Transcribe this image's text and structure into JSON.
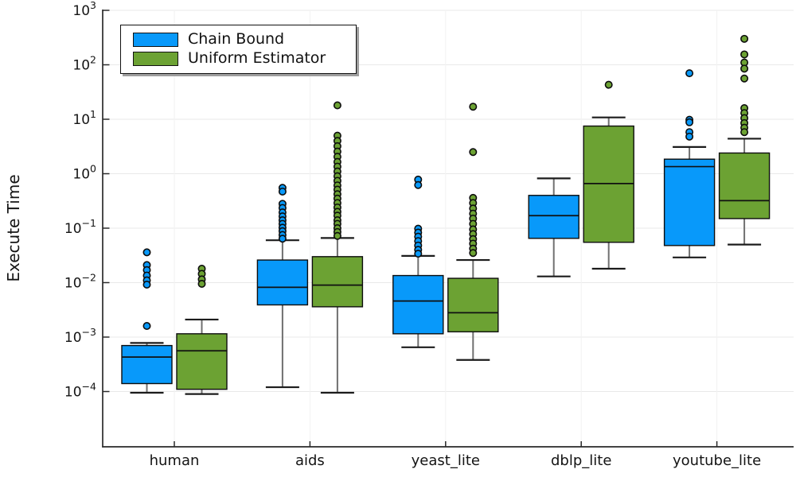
{
  "chart_data": {
    "type": "boxplot",
    "title": "",
    "ylabel": "Execute Time",
    "xlabel": "",
    "yscale": "log",
    "ylim": [
      1e-05,
      1000
    ],
    "ytick_exponents": [
      3,
      2,
      1,
      0,
      -1,
      -2,
      -3,
      -4
    ],
    "categories": [
      "human",
      "aids",
      "yeast_lite",
      "dblp_lite",
      "youtube_lite"
    ],
    "grid": true,
    "legend_position": "top-left",
    "colors": {
      "chain_bound": "#0899FA",
      "uniform_estimator": "#6CA233"
    },
    "series": [
      {
        "name": "Chain Bound",
        "color": "#0899FA",
        "boxes": [
          {
            "category": "human",
            "whislo": 9.5e-05,
            "q1": 0.00014,
            "med": 0.00043,
            "q3": 0.0007,
            "whishi": 0.00078,
            "outliers": [
              0.036,
              0.021,
              0.017,
              0.0135,
              0.011,
              0.0092,
              0.0016
            ]
          },
          {
            "category": "aids",
            "whislo": 0.00012,
            "q1": 0.0039,
            "med": 0.0082,
            "q3": 0.026,
            "whishi": 0.06,
            "outliers": [
              0.55,
              0.47,
              0.28,
              0.235,
              0.195,
              0.165,
              0.14,
              0.12,
              0.102,
              0.088,
              0.075,
              0.064
            ]
          },
          {
            "category": "yeast_lite",
            "whislo": 0.00065,
            "q1": 0.00115,
            "med": 0.0046,
            "q3": 0.0135,
            "whishi": 0.031,
            "outliers": [
              0.78,
              0.62,
              0.098,
              0.083,
              0.07,
              0.058,
              0.048,
              0.04,
              0.034
            ]
          },
          {
            "category": "dblp_lite",
            "whislo": 0.013,
            "q1": 0.065,
            "med": 0.17,
            "q3": 0.4,
            "whishi": 0.82,
            "outliers": []
          },
          {
            "category": "youtube_lite",
            "whislo": 0.029,
            "q1": 0.048,
            "med": 1.35,
            "q3": 1.85,
            "whishi": 3.1,
            "outliers": [
              70,
              9.8,
              8.8,
              5.8,
              4.8
            ]
          }
        ]
      },
      {
        "name": "Uniform Estimator",
        "color": "#6CA233",
        "boxes": [
          {
            "category": "human",
            "whislo": 9e-05,
            "q1": 0.00011,
            "med": 0.00056,
            "q3": 0.00115,
            "whishi": 0.0021,
            "outliers": [
              0.018,
              0.0145,
              0.0115,
              0.0095
            ]
          },
          {
            "category": "aids",
            "whislo": 9.5e-05,
            "q1": 0.0036,
            "med": 0.009,
            "q3": 0.03,
            "whishi": 0.066,
            "outliers": [
              18,
              5.0,
              4.0,
              3.2,
              2.55,
              2.05,
              1.65,
              1.35,
              1.1,
              0.9,
              0.74,
              0.61,
              0.51,
              0.42,
              0.35,
              0.29,
              0.24,
              0.2,
              0.17,
              0.14,
              0.12,
              0.1,
              0.085,
              0.072
            ]
          },
          {
            "category": "yeast_lite",
            "whislo": 0.00038,
            "q1": 0.00125,
            "med": 0.0028,
            "q3": 0.012,
            "whishi": 0.026,
            "outliers": [
              17,
              2.5,
              0.36,
              0.29,
              0.23,
              0.185,
              0.15,
              0.12,
              0.095,
              0.078,
              0.063,
              0.052,
              0.042,
              0.035
            ]
          },
          {
            "category": "dblp_lite",
            "whislo": 0.018,
            "q1": 0.055,
            "med": 0.66,
            "q3": 7.5,
            "whishi": 10.8,
            "outliers": [
              43
            ]
          },
          {
            "category": "youtube_lite",
            "whislo": 0.05,
            "q1": 0.15,
            "med": 0.32,
            "q3": 2.4,
            "whishi": 4.4,
            "outliers": [
              300,
              155,
              110,
              85,
              56,
              16,
              13,
              10.5,
              8.5,
              7.0,
              5.8
            ]
          }
        ]
      }
    ]
  }
}
